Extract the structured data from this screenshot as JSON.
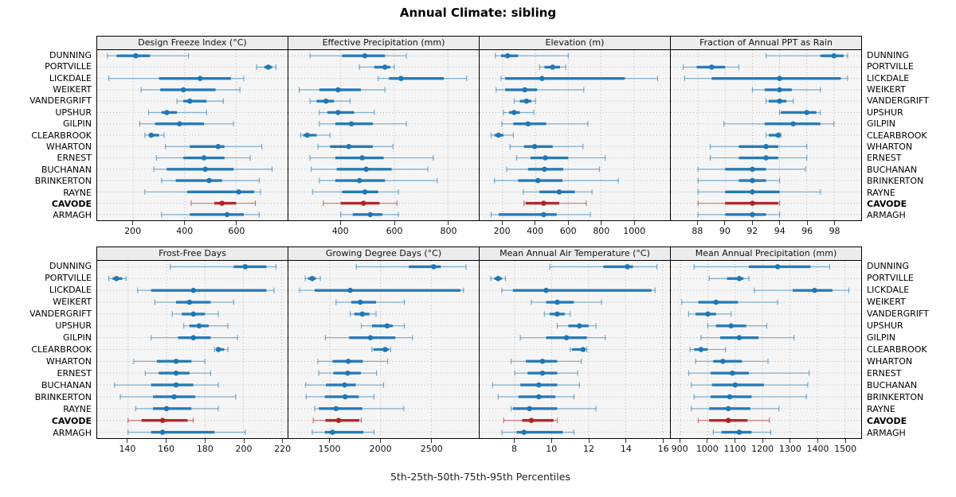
{
  "title": "Annual Climate: sibling",
  "xlabel": "5th-25th-50th-75th-95th Percentiles",
  "colors": {
    "series_normal": "#1f77b4",
    "series_highlight": "#b22222",
    "strip_bg": "#ececec",
    "panel_bg": "#f5f5f5",
    "grid": "#b3b3b3",
    "border": "#000000"
  },
  "chart_data": {
    "type": "dot-whisker",
    "note": "values are [5th,25th,50th,75th,95th] percentiles per station",
    "percentiles": [
      5,
      25,
      50,
      75,
      95
    ],
    "legend_position": "none",
    "grid": "dotted",
    "stations": [
      "DUNNING",
      "PORTVILLE",
      "LICKDALE",
      "WEIKERT",
      "VANDERGRIFT",
      "UPSHUR",
      "GILPIN",
      "CLEARBROOK",
      "WHARTON",
      "ERNEST",
      "BUCHANAN",
      "BRINKERTON",
      "RAYNE",
      "CAVODE",
      "ARMAGH"
    ],
    "highlight_station": "CAVODE",
    "rows": [
      [
        {
          "title": "Design Freeze Index (°C)",
          "xlim": [
            60,
            800
          ],
          "ticks": [
            200,
            400,
            600
          ],
          "values": [
            [
              100,
              135,
              210,
              265,
              415
            ],
            [
              680,
              710,
              725,
              740,
              755
            ],
            [
              105,
              300,
              460,
              580,
              630
            ],
            [
              230,
              305,
              395,
              520,
              615
            ],
            [
              370,
              395,
              420,
              485,
              550
            ],
            [
              260,
              310,
              330,
              370,
              485
            ],
            [
              225,
              285,
              380,
              475,
              590
            ],
            [
              245,
              260,
              270,
              300,
              320
            ],
            [
              325,
              420,
              530,
              555,
              700
            ],
            [
              290,
              395,
              475,
              555,
              655
            ],
            [
              280,
              330,
              480,
              590,
              740
            ],
            [
              310,
              365,
              495,
              545,
              690
            ],
            [
              245,
              410,
              610,
              670,
              695
            ],
            [
              425,
              515,
              545,
              600,
              675
            ],
            [
              310,
              420,
              565,
              630,
              690
            ]
          ]
        },
        {
          "title": "Effective Precipitation (mm)",
          "xlim": [
            205,
            915
          ],
          "ticks": [
            400,
            600,
            800
          ],
          "values": [
            [
              285,
              405,
              490,
              565,
              645
            ],
            [
              470,
              525,
              565,
              585,
              600
            ],
            [
              540,
              580,
              625,
              785,
              870
            ],
            [
              245,
              320,
              390,
              475,
              565
            ],
            [
              285,
              310,
              345,
              375,
              435
            ],
            [
              320,
              350,
              390,
              450,
              525
            ],
            [
              320,
              380,
              440,
              520,
              645
            ],
            [
              250,
              260,
              275,
              310,
              360
            ],
            [
              315,
              360,
              430,
              520,
              595
            ],
            [
              285,
              380,
              480,
              560,
              745
            ],
            [
              290,
              385,
              495,
              590,
              725
            ],
            [
              320,
              380,
              470,
              565,
              760
            ],
            [
              295,
              405,
              490,
              540,
              615
            ],
            [
              335,
              400,
              485,
              545,
              610
            ],
            [
              400,
              445,
              510,
              555,
              615
            ]
          ]
        },
        {
          "title": "Elevation (m)",
          "xlim": [
            60,
            1220
          ],
          "ticks": [
            200,
            400,
            600,
            800,
            1000
          ],
          "values": [
            [
              155,
              190,
              230,
              295,
              600
            ],
            [
              425,
              455,
              505,
              550,
              585
            ],
            [
              190,
              215,
              440,
              945,
              1145
            ],
            [
              160,
              215,
              335,
              410,
              695
            ],
            [
              270,
              305,
              345,
              375,
              400
            ],
            [
              205,
              240,
              270,
              305,
              390
            ],
            [
              195,
              265,
              355,
              465,
              720
            ],
            [
              130,
              150,
              175,
              205,
              265
            ],
            [
              245,
              330,
              395,
              505,
              690
            ],
            [
              285,
              370,
              460,
              600,
              825
            ],
            [
              225,
              355,
              455,
              570,
              790
            ],
            [
              150,
              295,
              415,
              565,
              905
            ],
            [
              325,
              425,
              545,
              640,
              745
            ],
            [
              330,
              340,
              450,
              545,
              710
            ],
            [
              130,
              175,
              450,
              530,
              735
            ]
          ]
        },
        {
          "title": "Fraction of Annual PPT as Rain",
          "xlim": [
            86,
            100
          ],
          "ticks": [
            88,
            90,
            92,
            94,
            96,
            98
          ],
          "values": [
            [
              93,
              97,
              98,
              98.7,
              99
            ],
            [
              86.9,
              87.9,
              89,
              90,
              91
            ],
            [
              87,
              89,
              94,
              98.5,
              99
            ],
            [
              92,
              92.9,
              94,
              94.9,
              97
            ],
            [
              93,
              93.2,
              94,
              94.5,
              95
            ],
            [
              94,
              94.1,
              96,
              96.7,
              97
            ],
            [
              89.9,
              92.9,
              95,
              97,
              98
            ],
            [
              93,
              93.2,
              93.9,
              94,
              94.1
            ],
            [
              88.9,
              91,
              93,
              93.9,
              96
            ],
            [
              88.9,
              91,
              93,
              93.9,
              96
            ],
            [
              88,
              90,
              92,
              93,
              95.9
            ],
            [
              88,
              91,
              92,
              93,
              94
            ],
            [
              88,
              90,
              92,
              94,
              97
            ],
            [
              88,
              90,
              92,
              93.9,
              94
            ],
            [
              88,
              90,
              92,
              93,
              94
            ]
          ]
        }
      ],
      [
        {
          "title": "Frost-Free Days",
          "xlim": [
            124,
            223
          ],
          "ticks": [
            140,
            160,
            180,
            200,
            220
          ],
          "values": [
            [
              162,
              195,
              201,
              212,
              217
            ],
            [
              130,
              132,
              134,
              137,
              139
            ],
            [
              145,
              152,
              174,
              212,
              216
            ],
            [
              154,
              165,
              172,
              183,
              195
            ],
            [
              163,
              168,
              174,
              180,
              187
            ],
            [
              169,
              172,
              177,
              182,
              192
            ],
            [
              152,
              166,
              174,
              183,
              197
            ],
            [
              185,
              186,
              187,
              190,
              192
            ],
            [
              143,
              155,
              165,
              173,
              180
            ],
            [
              149,
              156,
              165,
              172,
              183
            ],
            [
              133,
              152,
              165,
              174,
              187
            ],
            [
              136,
              153,
              164,
              175,
              196
            ],
            [
              144,
              153,
              160,
              173,
              187
            ],
            [
              140,
              147,
              158,
              171,
              174
            ],
            [
              140,
              152,
              158,
              185,
              201
            ]
          ]
        },
        {
          "title": "Growing Degree Days (°C)",
          "xlim": [
            1090,
            2970
          ],
          "ticks": [
            1500,
            2000,
            2500
          ],
          "values": [
            [
              1760,
              2280,
              2525,
              2595,
              2845
            ],
            [
              1255,
              1285,
              1325,
              1360,
              1405
            ],
            [
              1200,
              1350,
              1700,
              2790,
              2820
            ],
            [
              1560,
              1710,
              1800,
              1955,
              2235
            ],
            [
              1700,
              1740,
              1820,
              1890,
              1955
            ],
            [
              1810,
              1915,
              2065,
              2120,
              2235
            ],
            [
              1455,
              1690,
              1900,
              2145,
              2315
            ],
            [
              1915,
              1930,
              2045,
              2080,
              2100
            ],
            [
              1380,
              1525,
              1680,
              1825,
              2070
            ],
            [
              1390,
              1535,
              1675,
              1805,
              1960
            ],
            [
              1260,
              1460,
              1645,
              1755,
              2030
            ],
            [
              1265,
              1450,
              1650,
              1785,
              1935
            ],
            [
              1350,
              1390,
              1560,
              1820,
              2230
            ],
            [
              1335,
              1455,
              1585,
              1790,
              1810
            ],
            [
              1325,
              1450,
              1525,
              1830,
              1935
            ]
          ]
        },
        {
          "title": "Mean Annual Air Temperature (°C)",
          "xlim": [
            6.1,
            16.4
          ],
          "ticks": [
            8,
            10,
            12,
            14,
            16
          ],
          "values": [
            [
              9.9,
              12.8,
              14.1,
              14.4,
              15.7
            ],
            [
              6.7,
              6.9,
              7.1,
              7.3,
              7.5
            ],
            [
              7.3,
              7.9,
              9.7,
              15.4,
              15.6
            ],
            [
              8.9,
              9.7,
              10.3,
              11.2,
              12.7
            ],
            [
              9.6,
              9.9,
              10.3,
              10.7,
              11.0
            ],
            [
              10.3,
              10.9,
              11.5,
              12.0,
              12.4
            ],
            [
              8.3,
              9.7,
              10.8,
              11.9,
              12.9
            ],
            [
              11.0,
              11.1,
              11.7,
              11.8,
              11.9
            ],
            [
              7.8,
              8.6,
              9.5,
              10.3,
              11.6
            ],
            [
              8.0,
              8.7,
              9.5,
              10.3,
              11.4
            ],
            [
              6.8,
              8.3,
              9.3,
              10.3,
              11.5
            ],
            [
              7.1,
              8.2,
              9.3,
              10.2,
              11.2
            ],
            [
              7.8,
              7.9,
              8.8,
              10.3,
              12.4
            ],
            [
              7.4,
              8.4,
              8.9,
              10.1,
              10.3
            ],
            [
              7.3,
              8.1,
              8.5,
              10.6,
              11.2
            ]
          ]
        },
        {
          "title": "Mean Annual Precipitation (mm)",
          "xlim": [
            865,
            1560
          ],
          "ticks": [
            900,
            1000,
            1100,
            1200,
            1300,
            1400,
            1500
          ],
          "values": [
            [
              950,
              1150,
              1255,
              1375,
              1445
            ],
            [
              1005,
              1070,
              1115,
              1130,
              1150
            ],
            [
              1170,
              1310,
              1390,
              1455,
              1515
            ],
            [
              905,
              965,
              1030,
              1110,
              1255
            ],
            [
              930,
              955,
              1000,
              1030,
              1085
            ],
            [
              1000,
              1030,
              1085,
              1140,
              1215
            ],
            [
              975,
              1045,
              1115,
              1185,
              1315
            ],
            [
              935,
              950,
              975,
              1000,
              1065
            ],
            [
              955,
              1020,
              1055,
              1125,
              1220
            ],
            [
              930,
              1010,
              1090,
              1150,
              1370
            ],
            [
              940,
              1015,
              1100,
              1205,
              1365
            ],
            [
              950,
              1010,
              1080,
              1160,
              1360
            ],
            [
              940,
              1005,
              1075,
              1155,
              1260
            ],
            [
              965,
              1005,
              1075,
              1145,
              1225
            ],
            [
              1020,
              1050,
              1115,
              1160,
              1230
            ]
          ]
        }
      ]
    ]
  }
}
